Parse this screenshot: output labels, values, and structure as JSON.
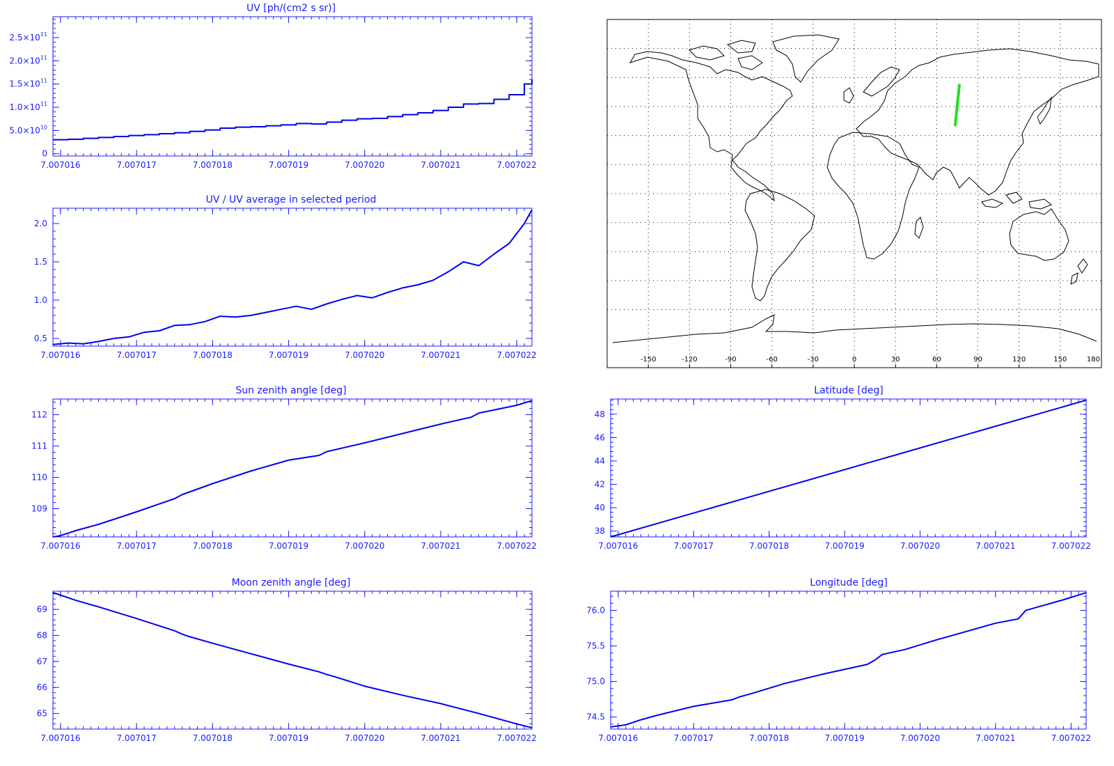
{
  "colors": {
    "axis": "#1a1aff",
    "line": "#0000ee",
    "map": "#000000",
    "track": "#22dd22",
    "grid": "#000000"
  },
  "chart_data": [
    {
      "id": "uv",
      "type": "line",
      "step": true,
      "title": "UV [ph/(cm2 s sr)]",
      "xlim": [
        7.0070159,
        7.0070222
      ],
      "ylim": [
        -5000000000.0,
        295000000000.0
      ],
      "xticks": [
        7.007016,
        7.007017,
        7.007018,
        7.007019,
        7.00702,
        7.007021,
        7.007022
      ],
      "xtick_labels": [
        "7.007016",
        "7.007017",
        "7.007018",
        "7.007019",
        "7.007020",
        "7.007021",
        "7.007022"
      ],
      "yticks": [
        0,
        50000000000.0,
        100000000000.0,
        150000000000.0,
        200000000000.0,
        250000000000.0
      ],
      "ytick_labels": [
        {
          "mant": "0",
          "exp": ""
        },
        {
          "mant": "5.0×10",
          "exp": "10"
        },
        {
          "mant": "1.0×10",
          "exp": "11"
        },
        {
          "mant": "1.5×10",
          "exp": "11"
        },
        {
          "mant": "2.0×10",
          "exp": "11"
        },
        {
          "mant": "2.5×10",
          "exp": "11"
        }
      ],
      "x": [
        7.0070159,
        7.0070161,
        7.0070163,
        7.0070165,
        7.0070167,
        7.0070169,
        7.0070171,
        7.0070173,
        7.0070175,
        7.0070177,
        7.0070179,
        7.0070181,
        7.0070183,
        7.0070185,
        7.0070187,
        7.0070189,
        7.0070191,
        7.0070193,
        7.0070195,
        7.0070197,
        7.0070199,
        7.0070201,
        7.0070203,
        7.0070205,
        7.0070207,
        7.0070209,
        7.0070211,
        7.0070213,
        7.0070215,
        7.0070217,
        7.0070219,
        7.0070221,
        7.0070222
      ],
      "y": [
        30000000000.0,
        31000000000.0,
        33000000000.0,
        35000000000.0,
        37000000000.0,
        39000000000.0,
        41000000000.0,
        43000000000.0,
        45000000000.0,
        48000000000.0,
        51000000000.0,
        55000000000.0,
        57000000000.0,
        58000000000.0,
        60000000000.0,
        62000000000.0,
        65000000000.0,
        64000000000.0,
        68000000000.0,
        72000000000.0,
        75000000000.0,
        76000000000.0,
        80000000000.0,
        84000000000.0,
        88000000000.0,
        93000000000.0,
        100000000000.0,
        107000000000.0,
        108000000000.0,
        117000000000.0,
        127000000000.0,
        150000000000.0,
        160000000000.0
      ]
    },
    {
      "id": "uvratio",
      "type": "line",
      "title": "UV / UV average in selected period",
      "xlim": [
        7.0070159,
        7.0070222
      ],
      "ylim": [
        0.4,
        2.2
      ],
      "xticks": [
        7.007016,
        7.007017,
        7.007018,
        7.007019,
        7.00702,
        7.007021,
        7.007022
      ],
      "xtick_labels": [
        "7.007016",
        "7.007017",
        "7.007018",
        "7.007019",
        "7.007020",
        "7.007021",
        "7.007022"
      ],
      "yticks": [
        0.5,
        1.0,
        1.5,
        2.0
      ],
      "ytick_labels": [
        "0.5",
        "1.0",
        "1.5",
        "2.0"
      ],
      "x": [
        7.0070159,
        7.0070161,
        7.0070163,
        7.0070165,
        7.0070167,
        7.0070169,
        7.0070171,
        7.0070173,
        7.0070175,
        7.0070177,
        7.0070179,
        7.0070181,
        7.0070183,
        7.0070185,
        7.0070187,
        7.0070189,
        7.0070191,
        7.0070193,
        7.0070195,
        7.0070197,
        7.0070199,
        7.0070201,
        7.0070203,
        7.0070205,
        7.0070207,
        7.0070209,
        7.0070211,
        7.0070213,
        7.0070215,
        7.0070217,
        7.0070219,
        7.0070221,
        7.0070222
      ],
      "y": [
        0.42,
        0.44,
        0.43,
        0.46,
        0.5,
        0.52,
        0.58,
        0.6,
        0.67,
        0.68,
        0.72,
        0.79,
        0.78,
        0.8,
        0.84,
        0.88,
        0.92,
        0.88,
        0.95,
        1.01,
        1.06,
        1.03,
        1.1,
        1.16,
        1.2,
        1.26,
        1.37,
        1.5,
        1.45,
        1.6,
        1.74,
        2.0,
        2.18
      ]
    },
    {
      "id": "sza",
      "type": "line",
      "title": "Sun zenith angle [deg]",
      "xlim": [
        7.0070159,
        7.0070222
      ],
      "ylim": [
        108.1,
        112.5
      ],
      "xticks": [
        7.007016,
        7.007017,
        7.007018,
        7.007019,
        7.00702,
        7.007021,
        7.007022
      ],
      "xtick_labels": [
        "7.007016",
        "7.007017",
        "7.007018",
        "7.007019",
        "7.007020",
        "7.007021",
        "7.007022"
      ],
      "yticks": [
        109,
        110,
        111,
        112
      ],
      "ytick_labels": [
        "109",
        "110",
        "111",
        "112"
      ],
      "x": [
        7.0070159,
        7.007016,
        7.0070162,
        7.0070165,
        7.007017,
        7.0070175,
        7.0070176,
        7.007018,
        7.0070185,
        7.007019,
        7.0070194,
        7.0070195,
        7.00702,
        7.0070205,
        7.007021,
        7.0070214,
        7.0070215,
        7.007022,
        7.0070222
      ],
      "y": [
        108.1,
        108.14,
        108.3,
        108.5,
        108.9,
        109.32,
        109.45,
        109.8,
        110.2,
        110.55,
        110.7,
        110.82,
        111.1,
        111.4,
        111.7,
        111.92,
        112.05,
        112.3,
        112.45
      ]
    },
    {
      "id": "lat",
      "type": "line",
      "title": "Latitude [deg]",
      "xlim": [
        7.0070159,
        7.0070222
      ],
      "ylim": [
        37.5,
        49.3
      ],
      "xticks": [
        7.007016,
        7.007017,
        7.007018,
        7.007019,
        7.00702,
        7.007021,
        7.007022
      ],
      "xtick_labels": [
        "7.007016",
        "7.007017",
        "7.007018",
        "7.007019",
        "7.007020",
        "7.007021",
        "7.007022"
      ],
      "yticks": [
        38,
        40,
        42,
        44,
        46,
        48
      ],
      "ytick_labels": [
        "38",
        "40",
        "42",
        "44",
        "46",
        "48"
      ],
      "x": [
        7.0070159,
        7.0070222
      ],
      "y": [
        37.5,
        49.2
      ]
    },
    {
      "id": "mza",
      "type": "line",
      "title": "Moon zenith angle [deg]",
      "xlim": [
        7.0070159,
        7.0070222
      ],
      "ylim": [
        64.4,
        69.7
      ],
      "xticks": [
        7.007016,
        7.007017,
        7.007018,
        7.007019,
        7.00702,
        7.007021,
        7.007022
      ],
      "xtick_labels": [
        "7.007016",
        "7.007017",
        "7.007018",
        "7.007019",
        "7.007020",
        "7.007021",
        "7.007022"
      ],
      "yticks": [
        65,
        66,
        67,
        68,
        69
      ],
      "ytick_labels": [
        "65",
        "66",
        "67",
        "68",
        "69"
      ],
      "x": [
        7.0070159,
        7.0070162,
        7.0070165,
        7.007017,
        7.0070175,
        7.0070176,
        7.0070177,
        7.007018,
        7.0070185,
        7.007019,
        7.0070194,
        7.0070195,
        7.0070196,
        7.00702,
        7.0070205,
        7.007021,
        7.0070215,
        7.007022,
        7.0070222
      ],
      "y": [
        69.65,
        69.35,
        69.1,
        68.65,
        68.18,
        68.05,
        67.95,
        67.7,
        67.3,
        66.9,
        66.6,
        66.5,
        66.42,
        66.05,
        65.7,
        65.38,
        65.0,
        64.6,
        64.45
      ]
    },
    {
      "id": "lon",
      "type": "line",
      "title": "Longitude [deg]",
      "xlim": [
        7.0070159,
        7.0070222
      ],
      "ylim": [
        74.33,
        76.27
      ],
      "xticks": [
        7.007016,
        7.007017,
        7.007018,
        7.007019,
        7.00702,
        7.007021,
        7.007022
      ],
      "xtick_labels": [
        "7.007016",
        "7.007017",
        "7.007018",
        "7.007019",
        "7.007020",
        "7.007021",
        "7.007022"
      ],
      "yticks": [
        74.5,
        75.0,
        75.5,
        76.0
      ],
      "ytick_labels": [
        "74.5",
        "75.0",
        "75.5",
        "76.0"
      ],
      "x": [
        7.0070159,
        7.0070161,
        7.0070163,
        7.0070165,
        7.007017,
        7.0070175,
        7.0070176,
        7.0070178,
        7.0070182,
        7.0070187,
        7.0070193,
        7.0070194,
        7.0070195,
        7.0070198,
        7.0070202,
        7.0070206,
        7.007021,
        7.0070213,
        7.0070214,
        7.0070216,
        7.0070219,
        7.0070222
      ],
      "y": [
        74.36,
        74.39,
        74.46,
        74.52,
        74.65,
        74.74,
        74.78,
        74.84,
        74.97,
        75.1,
        75.24,
        75.3,
        75.38,
        75.45,
        75.58,
        75.7,
        75.82,
        75.88,
        76.0,
        76.06,
        76.15,
        76.25
      ]
    }
  ],
  "map": {
    "xtick_labels": [
      "-150",
      "-120",
      "-90",
      "-60",
      "-30",
      "0",
      "30",
      "60",
      "90",
      "120",
      "150",
      "180"
    ],
    "xticks": [
      -150,
      -120,
      -90,
      -60,
      -30,
      0,
      30,
      60,
      90,
      120,
      150,
      180
    ],
    "grid_lon": [
      -150,
      -120,
      -90,
      -60,
      -30,
      0,
      30,
      60,
      90,
      120,
      150
    ],
    "grid_lat": [
      75,
      60,
      45,
      30,
      15,
      0,
      -15,
      -30,
      -45,
      -60
    ],
    "track": {
      "lon": [
        73.5,
        76.5
      ],
      "lat": [
        35.5,
        56.0
      ]
    }
  }
}
